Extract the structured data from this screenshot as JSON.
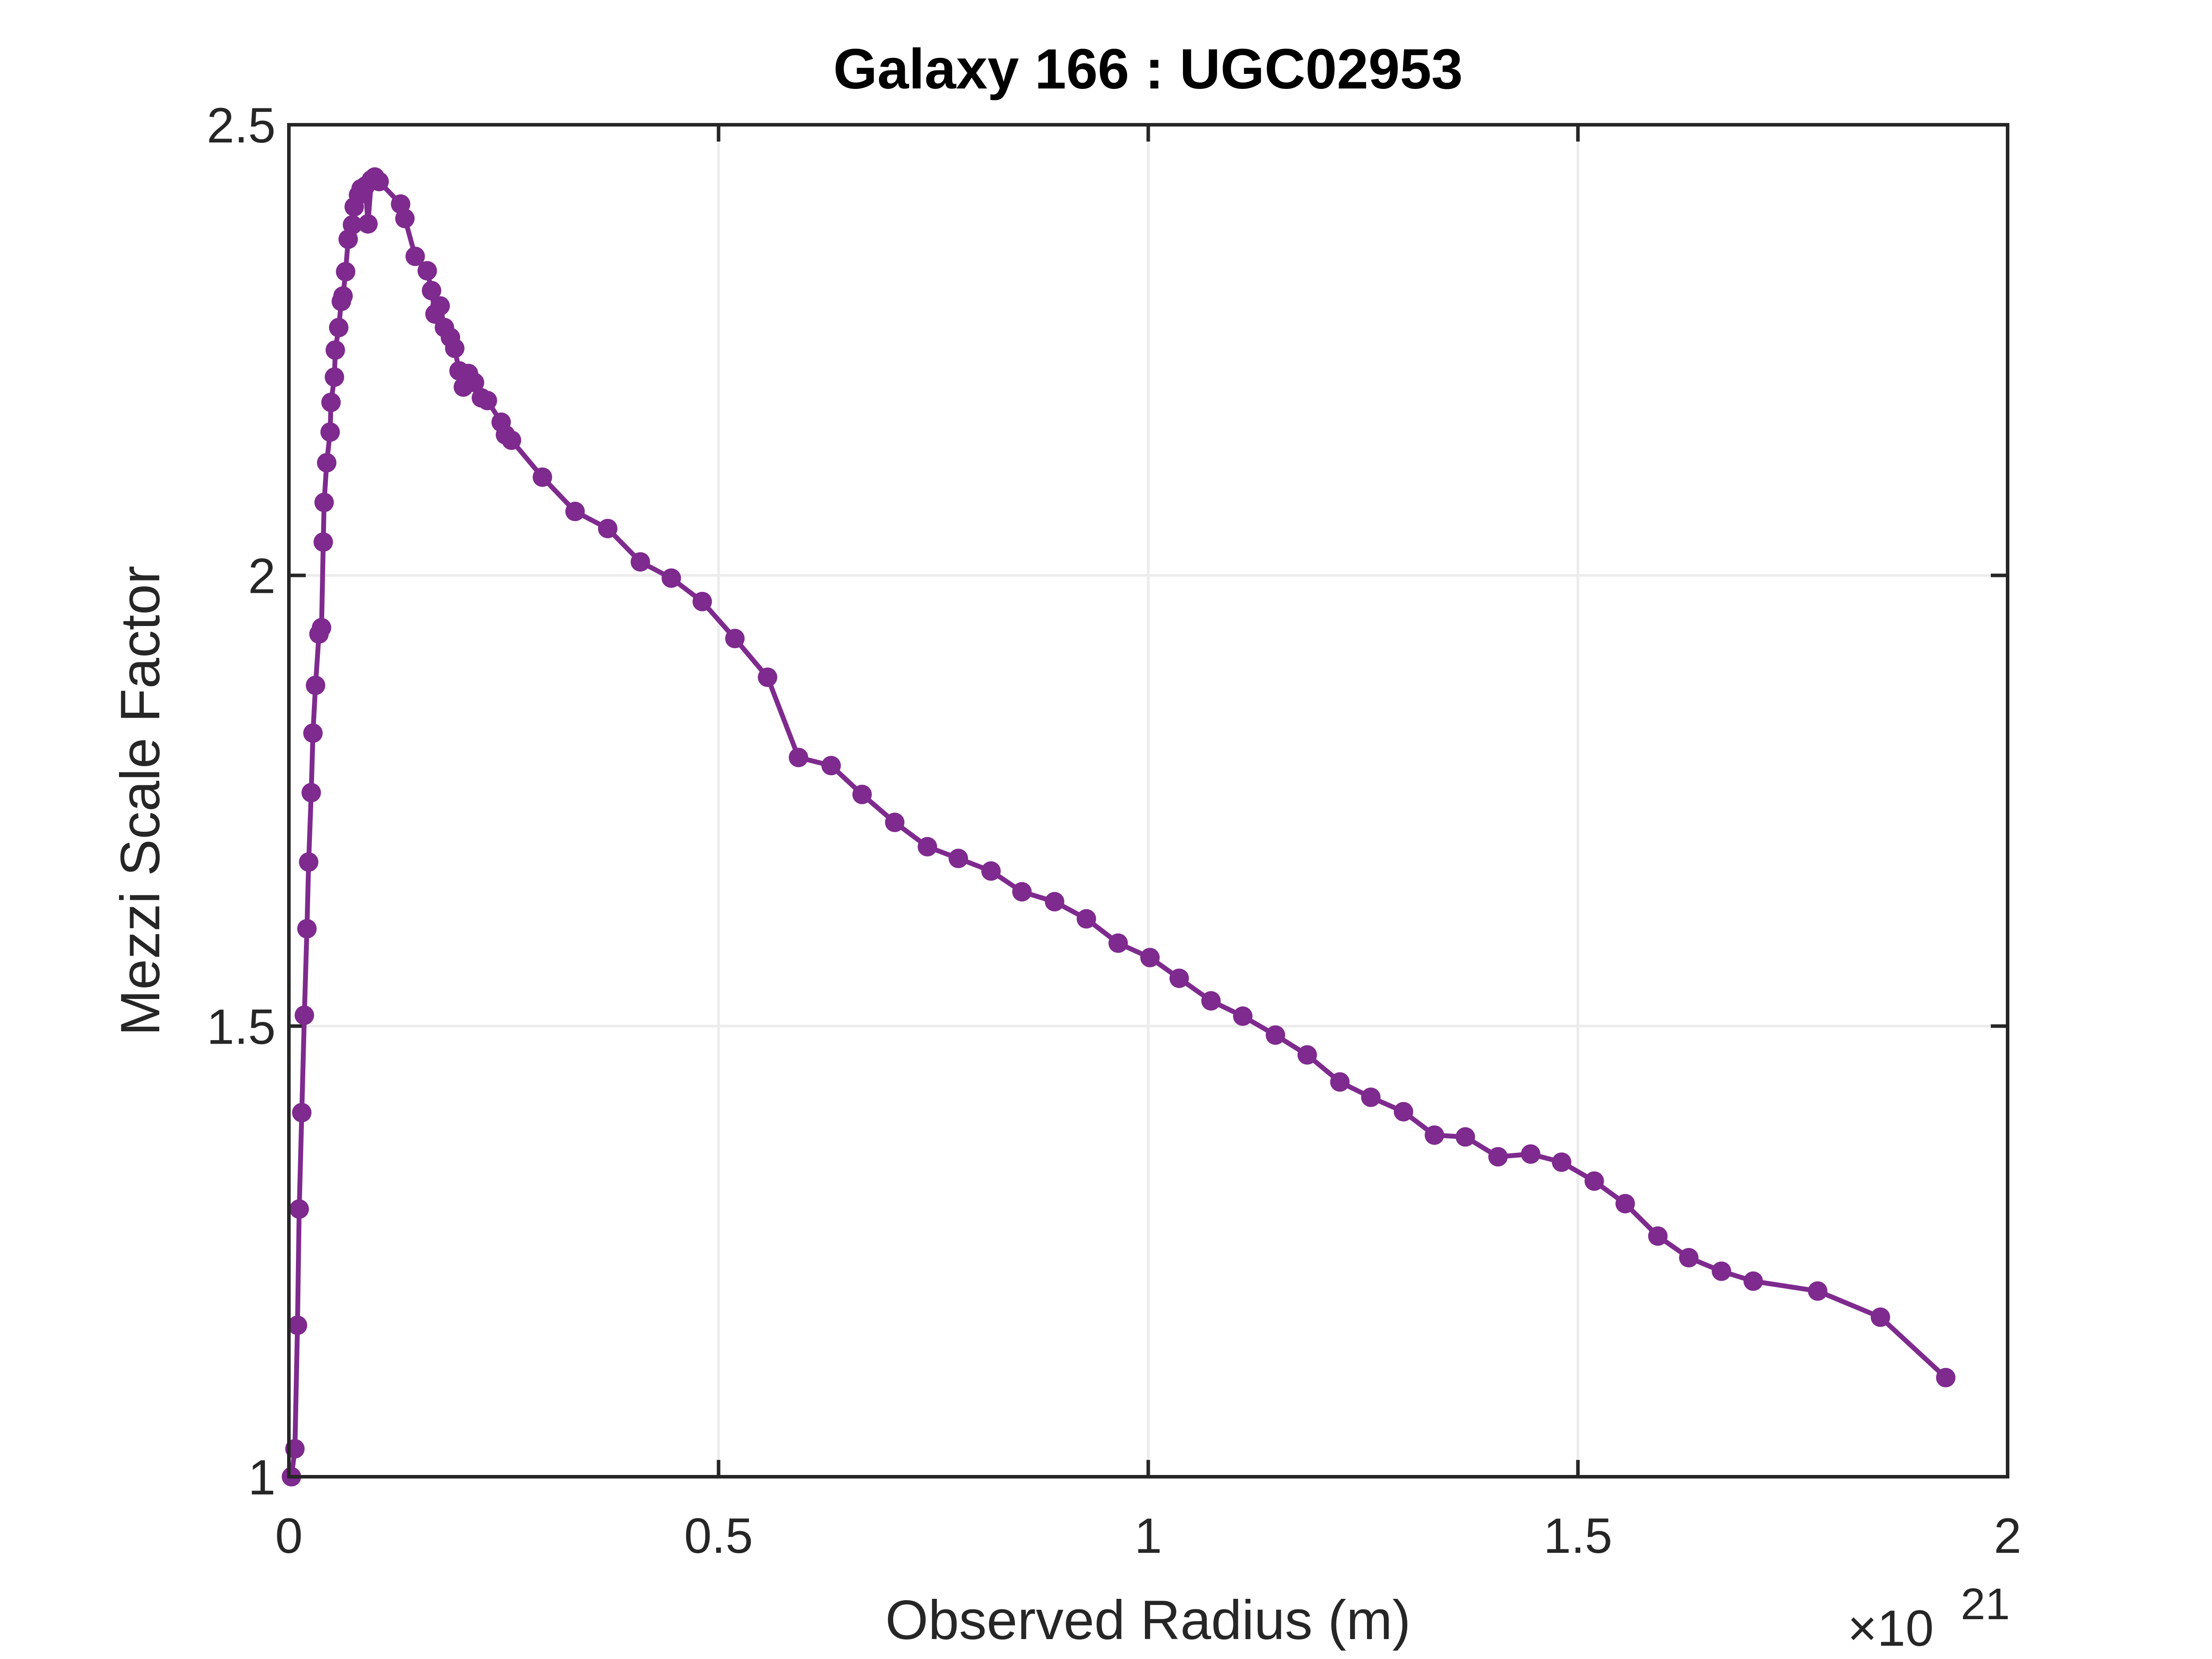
{
  "chart_data": {
    "type": "line",
    "title": "Galaxy 166 : UGC02953",
    "x_label": "Observed Radius (m)",
    "y_label": "Mezzi Scale Factor",
    "x_multiplier": {
      "base": "×10",
      "exponent": "21"
    },
    "xlim": [
      0,
      2
    ],
    "xticks": [
      0,
      0.5,
      1,
      1.5,
      2
    ],
    "ylim": [
      1,
      2.5
    ],
    "yticks": [
      1,
      1.5,
      2,
      2.5
    ],
    "grid": true,
    "series": [
      {
        "color": "#7e2a8e",
        "x": [
          0.003,
          0.007,
          0.01,
          0.012,
          0.015,
          0.018,
          0.021,
          0.023,
          0.026,
          0.028,
          0.031,
          0.035,
          0.038,
          0.04,
          0.041,
          0.044,
          0.048,
          0.049,
          0.053,
          0.054,
          0.058,
          0.061,
          0.063,
          0.066,
          0.069,
          0.074,
          0.076,
          0.081,
          0.084,
          0.089,
          0.092,
          0.096,
          0.1,
          0.105,
          0.13,
          0.135,
          0.147,
          0.161,
          0.166,
          0.17,
          0.176,
          0.181,
          0.188,
          0.193,
          0.198,
          0.203,
          0.209,
          0.216,
          0.224,
          0.231,
          0.247,
          0.252,
          0.259,
          0.295,
          0.333,
          0.371,
          0.409,
          0.445,
          0.481,
          0.519,
          0.557,
          0.593,
          0.631,
          0.667,
          0.705,
          0.743,
          0.779,
          0.817,
          0.853,
          0.891,
          0.928,
          0.965,
          1.002,
          1.036,
          1.073,
          1.11,
          1.148,
          1.185,
          1.223,
          1.259,
          1.297,
          1.333,
          1.369,
          1.407,
          1.445,
          1.481,
          1.519,
          1.555,
          1.593,
          1.629,
          1.667,
          1.704,
          1.779,
          1.852,
          1.928
        ],
        "values": [
          1.0,
          1.031,
          1.168,
          1.297,
          1.404,
          1.512,
          1.608,
          1.682,
          1.759,
          1.825,
          1.878,
          1.935,
          1.942,
          2.037,
          2.081,
          2.125,
          2.159,
          2.192,
          2.22,
          2.25,
          2.275,
          2.304,
          2.31,
          2.337,
          2.373,
          2.389,
          2.409,
          2.422,
          2.429,
          2.432,
          2.39,
          2.439,
          2.442,
          2.437,
          2.412,
          2.396,
          2.354,
          2.338,
          2.316,
          2.29,
          2.299,
          2.275,
          2.264,
          2.252,
          2.227,
          2.209,
          2.224,
          2.214,
          2.197,
          2.194,
          2.17,
          2.156,
          2.15,
          2.109,
          2.071,
          2.052,
          2.015,
          1.997,
          1.971,
          1.93,
          1.887,
          1.798,
          1.789,
          1.757,
          1.726,
          1.699,
          1.686,
          1.672,
          1.649,
          1.638,
          1.619,
          1.592,
          1.576,
          1.553,
          1.528,
          1.511,
          1.49,
          1.468,
          1.438,
          1.421,
          1.405,
          1.379,
          1.377,
          1.355,
          1.358,
          1.349,
          1.328,
          1.303,
          1.267,
          1.243,
          1.228,
          1.217,
          1.206,
          1.177,
          1.11
        ]
      }
    ]
  }
}
